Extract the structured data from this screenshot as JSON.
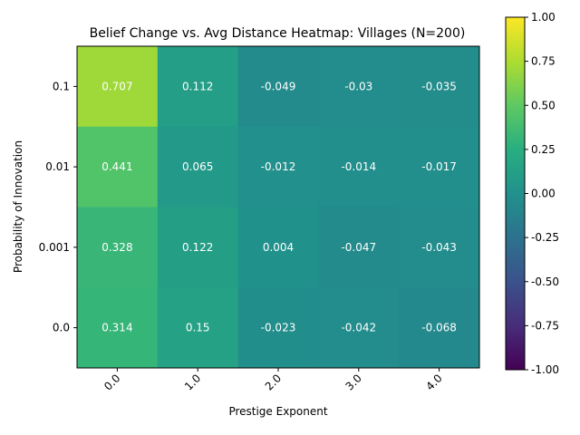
{
  "chart_data": {
    "type": "heatmap",
    "title": "Belief Change vs. Avg Distance Heatmap: Villages (N=200)",
    "xlabel": "Prestige Exponent",
    "ylabel": "Probability of Innovation",
    "x_categories": [
      "0.0",
      "1.0",
      "2.0",
      "3.0",
      "4.0"
    ],
    "y_categories": [
      "0.1",
      "0.01",
      "0.001",
      "0.0"
    ],
    "values": [
      [
        0.707,
        0.112,
        -0.049,
        -0.03,
        -0.035
      ],
      [
        0.441,
        0.065,
        -0.012,
        -0.014,
        -0.017
      ],
      [
        0.328,
        0.122,
        0.004,
        -0.047,
        -0.043
      ],
      [
        0.314,
        0.15,
        -0.023,
        -0.042,
        -0.068
      ]
    ],
    "colormap": "viridis",
    "colorbar": {
      "range": [
        -1.0,
        1.0
      ],
      "ticks": [
        "-1.00",
        "-0.75",
        "-0.50",
        "-0.25",
        "0.00",
        "0.25",
        "0.50",
        "0.75",
        "1.00"
      ]
    }
  }
}
